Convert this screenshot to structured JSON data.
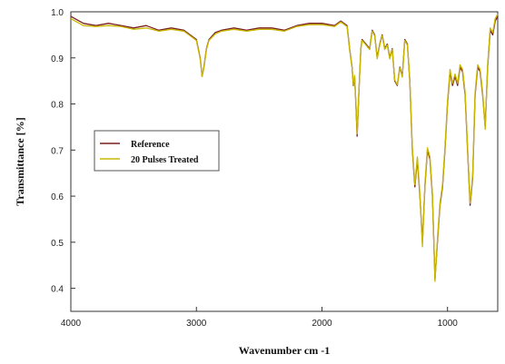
{
  "chart_data": {
    "type": "line",
    "title": "",
    "xlabel": "Wavenumber cm -1",
    "ylabel": "Transmittance [%]",
    "xlim": [
      4000,
      600
    ],
    "ylim": [
      0.35,
      1.0
    ],
    "x_reversed": true,
    "x_ticks": [
      4000,
      3000,
      2000,
      1000
    ],
    "x_tick_labels": [
      "4000",
      "3000",
      "2000",
      "1000"
    ],
    "y_ticks": [
      0.4,
      0.5,
      0.6,
      0.7,
      0.8,
      0.9,
      1.0
    ],
    "y_tick_labels": [
      "0.4",
      "0.5",
      "0.6",
      "0.7",
      "0.8",
      "0.9",
      "1.0"
    ],
    "grid": false,
    "legend_position": "middle-left",
    "x": [
      4000,
      3900,
      3800,
      3700,
      3600,
      3500,
      3400,
      3300,
      3200,
      3100,
      3050,
      3000,
      2970,
      2955,
      2940,
      2920,
      2900,
      2850,
      2800,
      2700,
      2600,
      2500,
      2400,
      2300,
      2200,
      2100,
      2000,
      1900,
      1850,
      1800,
      1780,
      1760,
      1750,
      1740,
      1730,
      1720,
      1710,
      1700,
      1690,
      1680,
      1650,
      1620,
      1600,
      1580,
      1560,
      1540,
      1520,
      1500,
      1480,
      1460,
      1440,
      1420,
      1400,
      1380,
      1360,
      1340,
      1320,
      1300,
      1280,
      1260,
      1240,
      1220,
      1200,
      1180,
      1160,
      1140,
      1120,
      1100,
      1080,
      1060,
      1040,
      1020,
      1000,
      980,
      960,
      940,
      920,
      900,
      880,
      860,
      840,
      820,
      800,
      780,
      760,
      740,
      720,
      700,
      680,
      660,
      640,
      620,
      600
    ],
    "series": [
      {
        "name": "Reference",
        "color": "#7a1f1f",
        "values": [
          0.99,
          0.975,
          0.97,
          0.975,
          0.97,
          0.965,
          0.97,
          0.96,
          0.965,
          0.96,
          0.95,
          0.94,
          0.9,
          0.86,
          0.88,
          0.92,
          0.94,
          0.955,
          0.96,
          0.965,
          0.96,
          0.965,
          0.965,
          0.96,
          0.97,
          0.975,
          0.975,
          0.97,
          0.98,
          0.97,
          0.92,
          0.88,
          0.84,
          0.86,
          0.8,
          0.73,
          0.8,
          0.86,
          0.92,
          0.94,
          0.93,
          0.92,
          0.96,
          0.95,
          0.9,
          0.93,
          0.95,
          0.92,
          0.93,
          0.9,
          0.92,
          0.85,
          0.84,
          0.88,
          0.86,
          0.94,
          0.93,
          0.85,
          0.7,
          0.62,
          0.68,
          0.6,
          0.5,
          0.62,
          0.7,
          0.68,
          0.6,
          0.42,
          0.5,
          0.58,
          0.62,
          0.7,
          0.8,
          0.87,
          0.84,
          0.86,
          0.84,
          0.88,
          0.87,
          0.82,
          0.7,
          0.58,
          0.64,
          0.82,
          0.88,
          0.87,
          0.82,
          0.75,
          0.88,
          0.96,
          0.95,
          0.98,
          0.99
        ]
      },
      {
        "name": "20 Pulses Treated",
        "color": "#c8b800",
        "values": [
          0.985,
          0.97,
          0.968,
          0.97,
          0.968,
          0.962,
          0.965,
          0.958,
          0.962,
          0.958,
          0.948,
          0.938,
          0.898,
          0.86,
          0.878,
          0.918,
          0.938,
          0.952,
          0.958,
          0.962,
          0.958,
          0.962,
          0.962,
          0.958,
          0.968,
          0.972,
          0.972,
          0.968,
          0.978,
          0.968,
          0.918,
          0.878,
          0.842,
          0.862,
          0.802,
          0.735,
          0.802,
          0.862,
          0.918,
          0.938,
          0.928,
          0.918,
          0.958,
          0.948,
          0.898,
          0.928,
          0.948,
          0.918,
          0.928,
          0.898,
          0.918,
          0.852,
          0.842,
          0.878,
          0.858,
          0.938,
          0.928,
          0.852,
          0.705,
          0.625,
          0.685,
          0.605,
          0.49,
          0.625,
          0.705,
          0.685,
          0.605,
          0.415,
          0.505,
          0.585,
          0.625,
          0.705,
          0.805,
          0.875,
          0.845,
          0.865,
          0.845,
          0.885,
          0.875,
          0.825,
          0.705,
          0.585,
          0.645,
          0.825,
          0.885,
          0.875,
          0.825,
          0.745,
          0.885,
          0.965,
          0.955,
          0.985,
          0.995
        ]
      }
    ]
  }
}
